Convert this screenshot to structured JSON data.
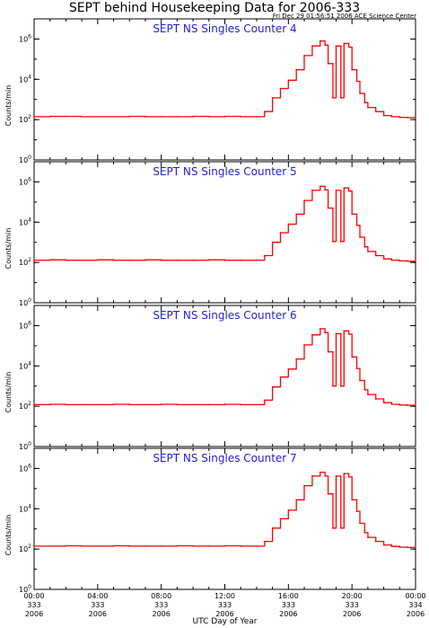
{
  "title": "SEPT behind Housekeeping Data for 2006-333",
  "timestamp": "Fri Dec 29 01:56:51 2006 ACE Science Center",
  "line_color": "#ff0000",
  "panel_title_color": "#1f1fd6",
  "chart_data": [
    {
      "type": "line",
      "title": "SEPT NS Singles Counter 4",
      "ylabel": "Counts/min",
      "xlabel": "UTC Day of Year",
      "y_scale": "log",
      "ylim": [
        1,
        10000000
      ],
      "y_ticks": [
        {
          "exp": "0"
        },
        {
          "exp": "2"
        },
        {
          "exp": "4"
        },
        {
          "exp": "6"
        }
      ],
      "x_ticks": [
        {
          "time": "00:00",
          "doy": "333",
          "year": "2006"
        },
        {
          "time": "04:00",
          "doy": "333",
          "year": "2006"
        },
        {
          "time": "08:00",
          "doy": "333",
          "year": "2006"
        },
        {
          "time": "12:00",
          "doy": "333",
          "year": "2006"
        },
        {
          "time": "16:00",
          "doy": "333",
          "year": "2006"
        },
        {
          "time": "20:00",
          "doy": "333",
          "year": "2006"
        },
        {
          "time": "00:00",
          "doy": "334",
          "year": "2006"
        }
      ],
      "x_hours": [
        0,
        1,
        2,
        3,
        4,
        5,
        6,
        7,
        8,
        9,
        10,
        11,
        12,
        13,
        14,
        14.5,
        15,
        15.5,
        16,
        16.5,
        17,
        17.5,
        18,
        18.3,
        18.5,
        18.8,
        19,
        19.3,
        19.5,
        19.8,
        20,
        20.3,
        20.5,
        20.8,
        21,
        21.5,
        22,
        22.5,
        23,
        23.5,
        24
      ],
      "counts": [
        140,
        145,
        145,
        140,
        140,
        140,
        145,
        140,
        140,
        140,
        145,
        140,
        145,
        140,
        140,
        250,
        1200,
        3500,
        9000,
        30000,
        150000,
        450000,
        800000,
        500000,
        60000,
        1200,
        450000,
        1200,
        600000,
        400000,
        30000,
        8000,
        2000,
        700,
        400,
        250,
        160,
        140,
        130,
        125,
        160
      ]
    },
    {
      "type": "line",
      "title": "SEPT NS Singles Counter 5",
      "ylabel": "Counts/min",
      "xlabel": "UTC Day of Year",
      "y_scale": "log",
      "ylim": [
        1,
        10000000
      ],
      "y_ticks": [
        {
          "exp": "0"
        },
        {
          "exp": "2"
        },
        {
          "exp": "4"
        },
        {
          "exp": "6"
        }
      ],
      "x_ticks": [
        {
          "time": "00:00",
          "doy": "333",
          "year": "2006"
        },
        {
          "time": "04:00",
          "doy": "333",
          "year": "2006"
        },
        {
          "time": "08:00",
          "doy": "333",
          "year": "2006"
        },
        {
          "time": "12:00",
          "doy": "333",
          "year": "2006"
        },
        {
          "time": "16:00",
          "doy": "333",
          "year": "2006"
        },
        {
          "time": "20:00",
          "doy": "333",
          "year": "2006"
        },
        {
          "time": "00:00",
          "doy": "334",
          "year": "2006"
        }
      ],
      "x_hours": [
        0,
        1,
        2,
        3,
        4,
        5,
        6,
        7,
        8,
        9,
        10,
        11,
        12,
        13,
        14,
        14.5,
        15,
        15.5,
        16,
        16.5,
        17,
        17.5,
        18,
        18.3,
        18.5,
        18.8,
        19,
        19.3,
        19.5,
        19.8,
        20,
        20.3,
        20.5,
        20.8,
        21,
        21.5,
        22,
        22.5,
        23,
        23.5,
        24
      ],
      "counts": [
        130,
        135,
        130,
        130,
        135,
        130,
        130,
        135,
        130,
        130,
        130,
        135,
        130,
        130,
        130,
        220,
        1000,
        3000,
        8000,
        25000,
        120000,
        380000,
        600000,
        400000,
        50000,
        1100,
        380000,
        1100,
        500000,
        350000,
        25000,
        7000,
        1800,
        600,
        350,
        220,
        150,
        130,
        120,
        115,
        150
      ]
    },
    {
      "type": "line",
      "title": "SEPT NS Singles Counter 6",
      "ylabel": "Counts/min",
      "xlabel": "UTC Day of Year",
      "y_scale": "log",
      "ylim": [
        1,
        10000000
      ],
      "y_ticks": [
        {
          "exp": "0"
        },
        {
          "exp": "2"
        },
        {
          "exp": "4"
        },
        {
          "exp": "6"
        }
      ],
      "x_ticks": [
        {
          "time": "00:00",
          "doy": "333",
          "year": "2006"
        },
        {
          "time": "04:00",
          "doy": "333",
          "year": "2006"
        },
        {
          "time": "08:00",
          "doy": "333",
          "year": "2006"
        },
        {
          "time": "12:00",
          "doy": "333",
          "year": "2006"
        },
        {
          "time": "16:00",
          "doy": "333",
          "year": "2006"
        },
        {
          "time": "20:00",
          "doy": "333",
          "year": "2006"
        },
        {
          "time": "00:00",
          "doy": "334",
          "year": "2006"
        }
      ],
      "x_hours": [
        0,
        1,
        2,
        3,
        4,
        5,
        6,
        7,
        8,
        9,
        10,
        11,
        12,
        13,
        14,
        14.5,
        15,
        15.5,
        16,
        16.5,
        17,
        17.5,
        18,
        18.3,
        18.5,
        18.8,
        19,
        19.3,
        19.5,
        19.8,
        20,
        20.3,
        20.5,
        20.8,
        21,
        21.5,
        22,
        22.5,
        23,
        23.5,
        24
      ],
      "counts": [
        120,
        125,
        120,
        120,
        120,
        125,
        120,
        120,
        125,
        120,
        120,
        120,
        125,
        120,
        120,
        200,
        900,
        2800,
        7000,
        22000,
        110000,
        350000,
        700000,
        450000,
        50000,
        1000,
        400000,
        1000,
        550000,
        380000,
        28000,
        7500,
        1900,
        650,
        380,
        230,
        150,
        125,
        115,
        110,
        140
      ]
    },
    {
      "type": "line",
      "title": "SEPT NS Singles Counter 7",
      "ylabel": "Counts/min",
      "xlabel": "UTC Day of Year",
      "y_scale": "log",
      "ylim": [
        1,
        10000000
      ],
      "y_ticks": [
        {
          "exp": "0"
        },
        {
          "exp": "2"
        },
        {
          "exp": "4"
        },
        {
          "exp": "6"
        }
      ],
      "x_ticks": [
        {
          "time": "00:00",
          "doy": "333",
          "year": "2006"
        },
        {
          "time": "04:00",
          "doy": "333",
          "year": "2006"
        },
        {
          "time": "08:00",
          "doy": "333",
          "year": "2006"
        },
        {
          "time": "12:00",
          "doy": "333",
          "year": "2006"
        },
        {
          "time": "16:00",
          "doy": "333",
          "year": "2006"
        },
        {
          "time": "20:00",
          "doy": "333",
          "year": "2006"
        },
        {
          "time": "00:00",
          "doy": "334",
          "year": "2006"
        }
      ],
      "x_hours": [
        0,
        1,
        2,
        3,
        4,
        5,
        6,
        7,
        8,
        9,
        10,
        11,
        12,
        13,
        14,
        14.5,
        15,
        15.5,
        16,
        16.5,
        17,
        17.5,
        18,
        18.3,
        18.5,
        18.8,
        19,
        19.3,
        19.5,
        19.8,
        20,
        20.3,
        20.5,
        20.8,
        21,
        21.5,
        22,
        22.5,
        23,
        23.5,
        24
      ],
      "counts": [
        140,
        140,
        145,
        140,
        140,
        145,
        140,
        140,
        140,
        145,
        140,
        140,
        145,
        140,
        140,
        240,
        1100,
        3200,
        8500,
        28000,
        140000,
        420000,
        650000,
        420000,
        55000,
        1100,
        420000,
        1100,
        560000,
        380000,
        28000,
        7500,
        1900,
        650,
        380,
        240,
        160,
        135,
        125,
        120,
        150
      ]
    }
  ]
}
